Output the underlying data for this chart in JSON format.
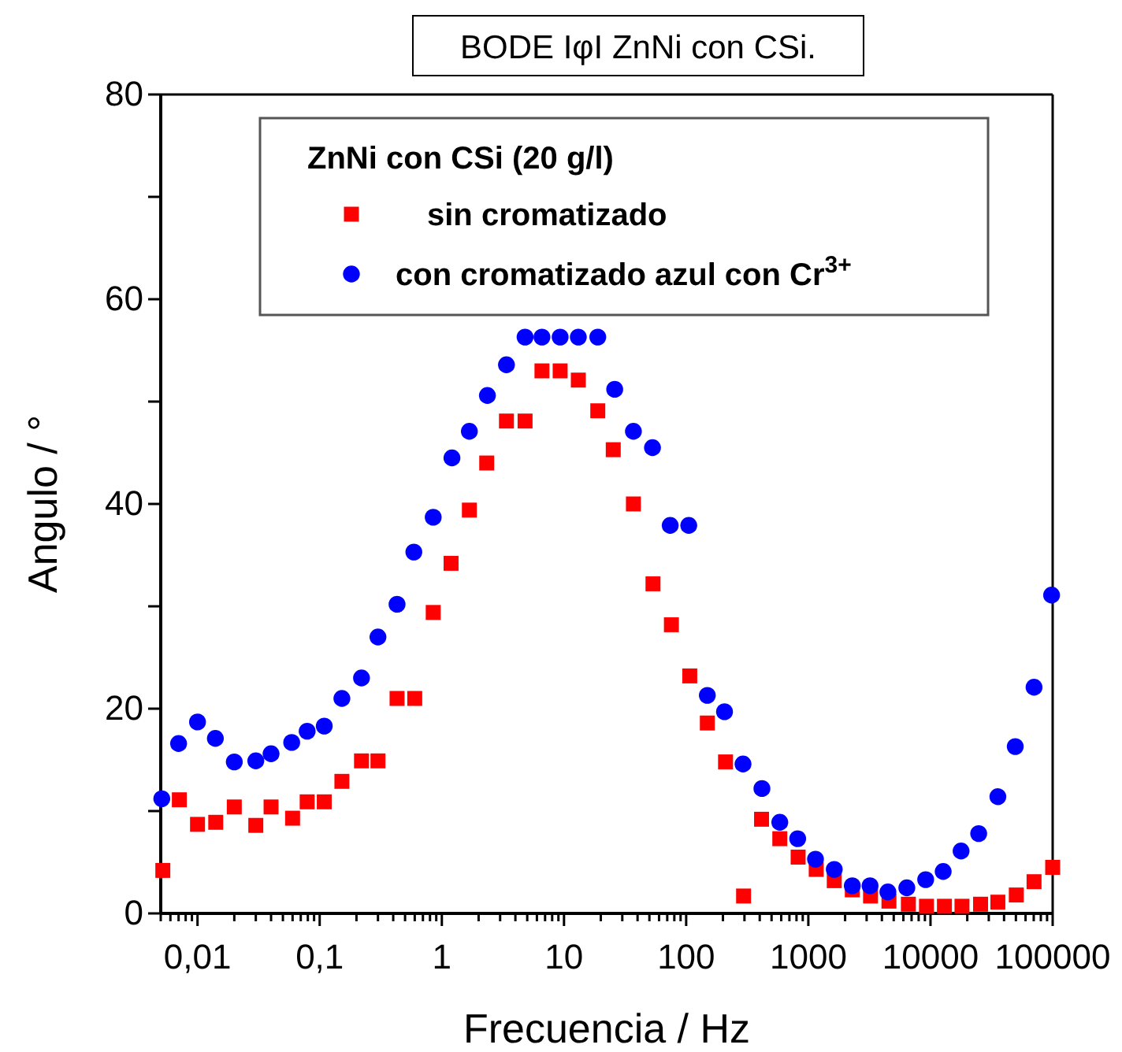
{
  "chart_data": {
    "type": "scatter",
    "title": "BODE IφI ZnNi con CSi.",
    "xlabel": "Frecuencia / Hz",
    "ylabel": "Angulo / °",
    "legend_title": "ZnNi con CSi (20 g/l)",
    "legend": "top",
    "log": "x",
    "grid": false,
    "xlim": [
      0.005,
      100000
    ],
    "xticks": [
      {
        "value": 0.01,
        "label": "0,01"
      },
      {
        "value": 0.1,
        "label": "0,1"
      },
      1,
      10,
      100,
      1000,
      10000,
      100000
    ],
    "ylim": [
      0,
      80
    ],
    "yticks": [
      0,
      {
        "value": 10,
        "label": null
      },
      20,
      {
        "value": 30,
        "label": null
      },
      40,
      {
        "value": 50,
        "label": null
      },
      60,
      {
        "value": 70,
        "label": null
      },
      80
    ],
    "series": [
      {
        "name": "sin cromatizado",
        "color": "#ff0000",
        "marker": "square",
        "x": [
          0.0052,
          0.0071,
          0.01,
          0.0141,
          0.02,
          0.03,
          0.04,
          0.06,
          0.079,
          0.109,
          0.152,
          0.22,
          0.3,
          0.43,
          0.6,
          0.85,
          1.19,
          1.68,
          2.33,
          3.38,
          4.8,
          6.6,
          9.3,
          13.1,
          18.9,
          25.3,
          37,
          53.5,
          75.7,
          107,
          149,
          210,
          295,
          414,
          584,
          825,
          1160,
          1630,
          2290,
          3230,
          4570,
          6590,
          9270,
          13000,
          18100,
          25700,
          35600,
          50400,
          70400,
          100000
        ],
        "values": [
          4.2,
          11.1,
          8.7,
          8.9,
          10.4,
          8.6,
          10.4,
          9.3,
          10.9,
          10.9,
          12.9,
          14.9,
          14.9,
          21.0,
          21.0,
          29.4,
          34.2,
          39.4,
          44.0,
          48.1,
          48.1,
          53.0,
          53.0,
          52.1,
          49.1,
          45.3,
          40.0,
          32.2,
          28.2,
          23.2,
          18.6,
          14.8,
          1.7,
          9.2,
          7.3,
          5.5,
          4.3,
          3.2,
          2.3,
          1.7,
          1.2,
          0.9,
          0.7,
          0.7,
          0.7,
          0.9,
          1.1,
          1.8,
          3.1,
          4.5
        ]
      },
      {
        "name": "con cromatizado azul con Cr$^{3+}$",
        "color": "#0000ff",
        "marker": "circle",
        "x": [
          0.0051,
          0.007,
          0.01,
          0.014,
          0.02,
          0.03,
          0.04,
          0.059,
          0.079,
          0.109,
          0.152,
          0.22,
          0.3,
          0.43,
          0.59,
          0.85,
          1.21,
          1.68,
          2.36,
          3.38,
          4.8,
          6.6,
          9.3,
          13.1,
          18.9,
          26,
          37,
          53,
          74,
          105,
          149,
          206,
          292,
          417,
          584,
          818,
          1144,
          1630,
          2290,
          3200,
          4480,
          6400,
          9130,
          12700,
          17800,
          24800,
          35600,
          49400,
          70400,
          98000
        ],
        "values": [
          11.2,
          16.6,
          18.7,
          17.1,
          14.8,
          14.9,
          15.6,
          16.7,
          17.8,
          18.3,
          21.0,
          23.0,
          27.0,
          30.2,
          35.3,
          38.7,
          44.5,
          47.1,
          50.6,
          53.6,
          56.3,
          56.3,
          56.3,
          56.3,
          56.3,
          51.2,
          47.1,
          45.5,
          37.9,
          37.9,
          21.3,
          19.7,
          14.6,
          12.2,
          8.9,
          7.3,
          5.3,
          4.3,
          2.7,
          2.7,
          2.1,
          2.5,
          3.3,
          4.1,
          6.1,
          7.8,
          11.4,
          16.3,
          22.1,
          31.1
        ]
      }
    ]
  }
}
